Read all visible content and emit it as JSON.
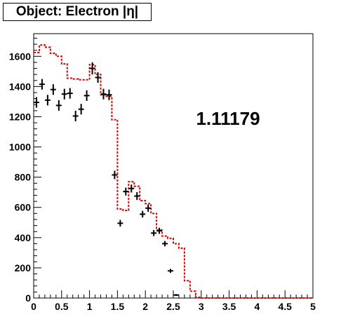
{
  "title": "Object: Electron |η|",
  "annotation": "1.11179",
  "chart_data": {
    "type": "line",
    "title": "Object: Electron |η|",
    "xlabel": "",
    "ylabel": "",
    "xlim": [
      0,
      5
    ],
    "ylim": [
      0,
      1750
    ],
    "x_ticks": [
      0,
      0.5,
      1,
      1.5,
      2,
      2.5,
      3,
      3.5,
      4,
      4.5,
      5
    ],
    "x_tick_labels": [
      "0",
      "0.5",
      "1",
      "1.5",
      "2",
      "2.5",
      "3",
      "3.5",
      "4",
      "4.5",
      "5"
    ],
    "y_ticks": [
      0,
      200,
      400,
      600,
      800,
      1000,
      1200,
      1400,
      1600
    ],
    "y_tick_labels": [
      "0",
      "200",
      "400",
      "600",
      "800",
      "1000",
      "1200",
      "1400",
      "1600"
    ],
    "bin_width": 0.1,
    "annotations": [
      "1.11179"
    ],
    "series": [
      {
        "style": "dashed-step",
        "color": "#dd0000",
        "bin_edges_start": 0,
        "values": [
          1625,
          1675,
          1660,
          1620,
          1600,
          1550,
          1455,
          1450,
          1445,
          1445,
          1545,
          1480,
          1345,
          1335,
          1180,
          590,
          580,
          770,
          740,
          645,
          625,
          560,
          450,
          410,
          395,
          360,
          330,
          115,
          45,
          5,
          0,
          0,
          0,
          0,
          0,
          0,
          0,
          0,
          0,
          0,
          0,
          0,
          0,
          0,
          0,
          0,
          0,
          0,
          0,
          0
        ]
      },
      {
        "style": "points-with-errors",
        "color": "#000000",
        "x": [
          0.05,
          0.15,
          0.25,
          0.35,
          0.45,
          0.55,
          0.65,
          0.75,
          0.85,
          0.95,
          1.05,
          1.15,
          1.25,
          1.35,
          1.45,
          1.55,
          1.65,
          1.75,
          1.85,
          1.95,
          2.05,
          2.15,
          2.25,
          2.35,
          2.45,
          2.55
        ],
        "y": [
          1295,
          1415,
          1310,
          1380,
          1275,
          1350,
          1355,
          1205,
          1250,
          1340,
          1520,
          1460,
          1350,
          1345,
          815,
          495,
          705,
          725,
          675,
          555,
          595,
          430,
          445,
          360,
          180,
          20
        ],
        "y_err": [
          35,
          35,
          35,
          35,
          35,
          35,
          35,
          35,
          35,
          35,
          40,
          35,
          35,
          35,
          28,
          22,
          26,
          26,
          26,
          22,
          24,
          20,
          20,
          18,
          13,
          6
        ]
      }
    ]
  }
}
